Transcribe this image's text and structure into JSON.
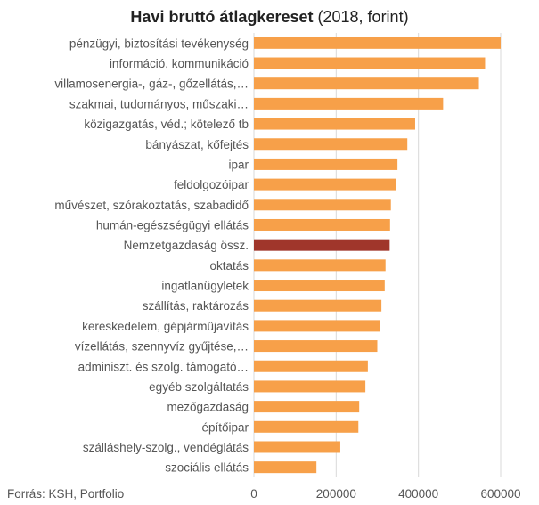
{
  "chart_data": {
    "type": "bar",
    "orientation": "horizontal",
    "title": "Havi bruttó átlagkereset",
    "subtitle": "(2018, forint)",
    "categories": [
      "pénzügyi, biztosítási tevékenység",
      "információ, kommunikáció",
      "villamosenergia-, gáz-, gőzellátás,…",
      "szakmai, tudományos, műszaki…",
      "közigazgatás, véd.; kötelező tb",
      "bányászat, kőfejtés",
      "ipar",
      "feldolgozóipar",
      "művészet, szórakoztatás, szabadidő",
      "humán-egészségügyi ellátás",
      "Nemzetgazdaság össz.",
      "oktatás",
      "ingatlanügyletek",
      "szállítás, raktározás",
      "kereskedelem, gépjárműjavítás",
      "vízellátás, szennyvíz gyűjtése,…",
      "adminiszt. és szolg. támogató…",
      "egyéb szolgáltatás",
      "mezőgazdaság",
      "építőipar",
      "szálláshely-szolg., vendéglátás",
      "szociális ellátás"
    ],
    "values": [
      600000,
      562000,
      547000,
      460000,
      392000,
      373000,
      349000,
      345000,
      333000,
      331000,
      330000,
      320000,
      318000,
      310000,
      306000,
      300000,
      277000,
      271000,
      256000,
      254000,
      210000,
      152000
    ],
    "highlight_category": "Nemzetgazdaság össz.",
    "xlim": [
      0,
      600000
    ],
    "x_ticks": [
      0,
      200000,
      400000,
      600000
    ],
    "x_tick_labels": [
      "0",
      "200000",
      "400000",
      "600000"
    ],
    "grid": "vertical",
    "legend": "none",
    "colors": {
      "bar": "#F7A049",
      "highlight": "#A0362B",
      "grid": "#D9D9D9",
      "label": "#555555",
      "title": "#222222"
    }
  },
  "footer": {
    "source": "Forrás: KSH, Portfolio"
  }
}
